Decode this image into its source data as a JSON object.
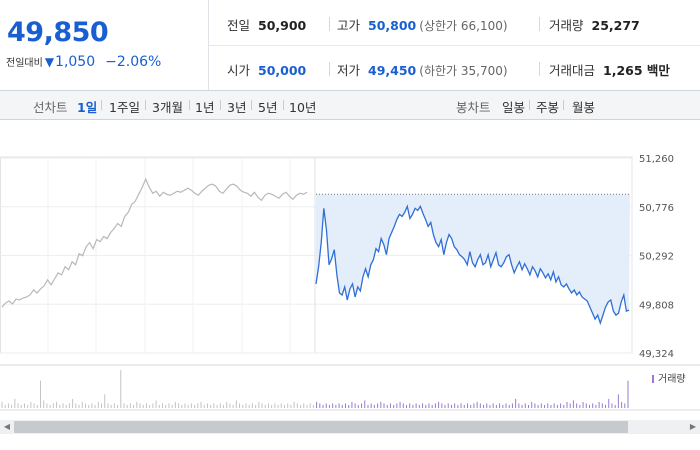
{
  "quote": {
    "price": "49,850",
    "change_label": "전일대비",
    "change_icon": "down-triangle-icon",
    "change_symbol": "▼",
    "change_value": "1,050",
    "change_pct": "−2.06%",
    "color_down": "#1a5fd1"
  },
  "stats": {
    "prev_close_label": "전일",
    "prev_close": "50,900",
    "high_label": "고가",
    "high": "50,800",
    "upper_limit": "(상한가 66,100)",
    "volume_label": "거래량",
    "volume": "25,277",
    "open_label": "시가",
    "open": "50,000",
    "low_label": "저가",
    "low": "49,450",
    "lower_limit": "(하한가 35,700)",
    "amount_label": "거래대금",
    "amount": "1,265 백만"
  },
  "toolbar": {
    "line_chart_label": "선차트",
    "line_periods": [
      "1일",
      "1주일",
      "3개월",
      "1년",
      "3년",
      "5년",
      "10년"
    ],
    "active_period": "1일",
    "candle_chart_label": "봉차트",
    "candle_periods": [
      "일봉",
      "주봉",
      "월봉"
    ]
  },
  "chart_data": {
    "type": "line",
    "ylim": [
      49324,
      51260
    ],
    "yticks": [
      "51,260",
      "50,776",
      "50,292",
      "49,808",
      "49,324"
    ],
    "reference_line": 50900,
    "volume_legend": "거래량",
    "line_color": "#2f6fd6",
    "fill_color": "#e4edfa",
    "prev_day_color": "#b8b8b8",
    "prev_day_series": [
      49780,
      49820,
      49840,
      49810,
      49860,
      49850,
      49870,
      49880,
      49900,
      49950,
      49920,
      49960,
      49990,
      50050,
      50000,
      50060,
      50120,
      50100,
      50180,
      50150,
      50230,
      50200,
      50310,
      50290,
      50380,
      50420,
      50360,
      50450,
      50430,
      50480,
      50460,
      50520,
      50560,
      50610,
      50580,
      50680,
      50720,
      50800,
      50830,
      50900,
      50970,
      51050,
      50970,
      50910,
      50930,
      50880,
      50920,
      50900,
      50890,
      50910,
      50930,
      50920,
      50940,
      50960,
      50940,
      50910,
      50890,
      50930,
      50960,
      50990,
      51000,
      50980,
      50930,
      50910,
      50950,
      50990,
      51000,
      50980,
      50940,
      50920,
      50910,
      50880,
      50920,
      50870,
      50840,
      50890,
      50910,
      50900,
      50880,
      50860,
      50900,
      50920,
      50880,
      50850,
      50890,
      50910,
      50900,
      50920
    ],
    "today_series": [
      50010,
      50180,
      50420,
      50760,
      50550,
      50200,
      50260,
      50350,
      50100,
      49920,
      49900,
      49980,
      49850,
      49960,
      50010,
      49880,
      49980,
      49940,
      50080,
      50160,
      50080,
      50200,
      50250,
      50360,
      50330,
      50460,
      50400,
      50300,
      50460,
      50520,
      50580,
      50650,
      50700,
      50680,
      50720,
      50780,
      50660,
      50700,
      50760,
      50740,
      50780,
      50710,
      50650,
      50580,
      50620,
      50500,
      50420,
      50380,
      50450,
      50300,
      50420,
      50500,
      50460,
      50380,
      50350,
      50300,
      50280,
      50250,
      50200,
      50330,
      50220,
      50180,
      50250,
      50300,
      50200,
      50220,
      50300,
      50180,
      50250,
      50320,
      50200,
      50180,
      50220,
      50280,
      50300,
      50200,
      50120,
      50180,
      50230,
      50150,
      50210,
      50160,
      50100,
      50180,
      50140,
      50080,
      50160,
      50120,
      50070,
      50110,
      50050,
      50130,
      50030,
      50080,
      50000,
      49980,
      50010,
      49960,
      49920,
      49950,
      49900,
      49930,
      49880,
      49860,
      49840,
      49780,
      49720,
      49660,
      49700,
      49620,
      49700,
      49780,
      49830,
      49850,
      49740,
      49700,
      49720,
      49830,
      49900,
      49740,
      49750
    ],
    "volume_bars": [
      4,
      2,
      3,
      2,
      6,
      3,
      2,
      3,
      2,
      4,
      3,
      2,
      18,
      5,
      3,
      2,
      3,
      4,
      2,
      3,
      2,
      3,
      6,
      3,
      2,
      4,
      3,
      2,
      3,
      2,
      4,
      3,
      9,
      3,
      2,
      3,
      2,
      25,
      3,
      2,
      3,
      2,
      4,
      3,
      2,
      3,
      2,
      3,
      5,
      2,
      3,
      2,
      3,
      2,
      4,
      3,
      2,
      3,
      2,
      3,
      2,
      3,
      4,
      2,
      3,
      2,
      3,
      2,
      3,
      2,
      4,
      3,
      2,
      5,
      3,
      2,
      3,
      2,
      3,
      2,
      4,
      3,
      2,
      3,
      2,
      3,
      2,
      3,
      2,
      3,
      2,
      4,
      3,
      2,
      3,
      2,
      3,
      2,
      4,
      3,
      2,
      3,
      2,
      3,
      2,
      3,
      2,
      3,
      2,
      4,
      3,
      2,
      3,
      5,
      2,
      3,
      2,
      3,
      4,
      3,
      2,
      3,
      2,
      3,
      4,
      3,
      2,
      3,
      2,
      3,
      2,
      3,
      2,
      3,
      2,
      3,
      4,
      3,
      2,
      3,
      2,
      3,
      2,
      3,
      2,
      3,
      2,
      3,
      4,
      3,
      2,
      3,
      2,
      3,
      2,
      3,
      2,
      3,
      2,
      3,
      6,
      3,
      2,
      3,
      2,
      4,
      3,
      2,
      3,
      2,
      3,
      2,
      3,
      2,
      3,
      2,
      4,
      3,
      5,
      3,
      2,
      4,
      3,
      2,
      3,
      2,
      4,
      3,
      2,
      6,
      3,
      2,
      9,
      4,
      3,
      18
    ]
  }
}
